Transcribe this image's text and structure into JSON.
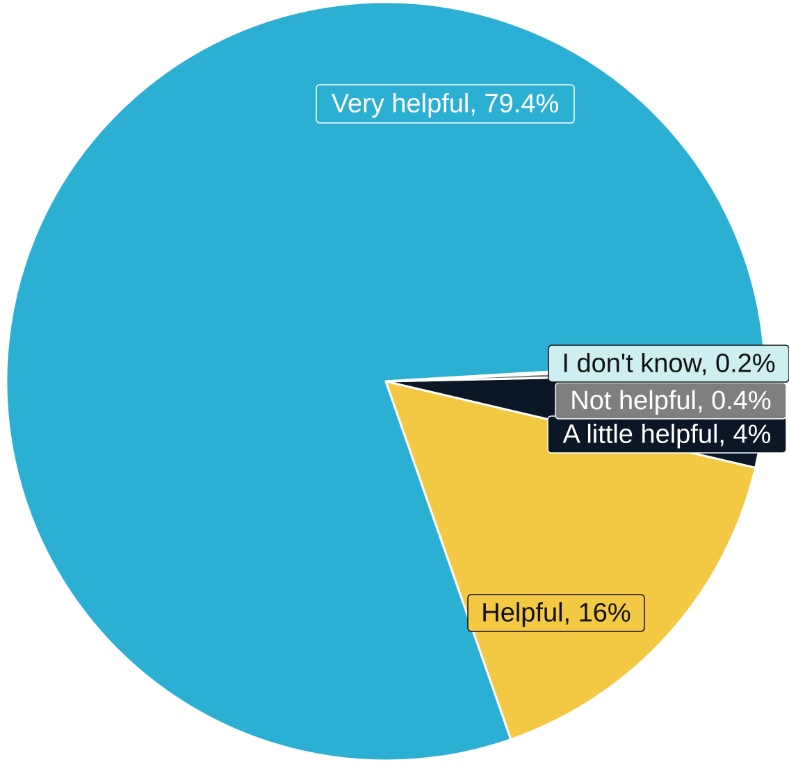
{
  "chart_data": {
    "type": "pie",
    "start_angle_deg": 356.6,
    "direction": "counterclockwise",
    "slices": [
      {
        "label": "Very helpful",
        "value": 79.4,
        "display": "Very helpful, 79.4%",
        "color": "#2bafd3",
        "label_text_color": "#ffffff",
        "label_border_color": "#ffffff"
      },
      {
        "label": "Helpful",
        "value": 16,
        "display": "Helpful, 16%",
        "color": "#f3c944",
        "label_text_color": "#111111",
        "label_border_color": "#111111"
      },
      {
        "label": "A little helpful",
        "value": 4,
        "display": "A little helpful, 4%",
        "color": "#0b1627",
        "label_text_color": "#ffffff",
        "label_border_color": "#ffffff"
      },
      {
        "label": "Not helpful",
        "value": 0.4,
        "display": "Not helpful, 0.4%",
        "color": "#7f7f7f",
        "label_text_color": "#ffffff",
        "label_border_color": "#ffffff"
      },
      {
        "label": "I don't know",
        "value": 0.2,
        "display": "I don't know, 0.2%",
        "color": "#cfeef0",
        "label_text_color": "#111111",
        "label_border_color": "#111111"
      }
    ]
  }
}
